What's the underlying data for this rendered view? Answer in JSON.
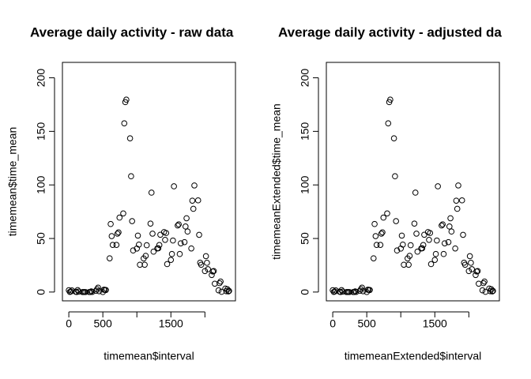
{
  "chart_data": [
    {
      "type": "scatter",
      "title": "Average daily activity - raw data",
      "x_label": "timemean$interval",
      "y_label": "timemean$time_mean",
      "x": [
        0,
        15,
        30,
        45,
        100,
        115,
        130,
        145,
        200,
        215,
        230,
        245,
        300,
        315,
        330,
        345,
        400,
        415,
        430,
        445,
        500,
        515,
        530,
        545,
        600,
        615,
        630,
        645,
        700,
        715,
        730,
        745,
        800,
        815,
        830,
        845,
        900,
        915,
        930,
        945,
        1000,
        1015,
        1030,
        1045,
        1100,
        1115,
        1130,
        1145,
        1200,
        1215,
        1230,
        1245,
        1300,
        1315,
        1330,
        1345,
        1400,
        1415,
        1430,
        1445,
        1500,
        1515,
        1530,
        1545,
        1600,
        1615,
        1630,
        1645,
        1700,
        1715,
        1730,
        1745,
        1800,
        1815,
        1830,
        1845,
        1900,
        1915,
        1930,
        1945,
        2000,
        2015,
        2030,
        2045,
        2100,
        2115,
        2130,
        2145,
        2200,
        2215,
        2230,
        2245,
        2300,
        2315,
        2330,
        2345,
        2355
      ],
      "values": [
        1.7,
        0.1,
        0.5,
        1.5,
        0.3,
        0,
        1.8,
        0.4,
        0,
        0,
        0,
        0,
        0,
        0,
        0.6,
        0.1,
        1.2,
        2.6,
        4.1,
        0.8,
        0,
        2.2,
        2.1,
        1.9,
        31.5,
        63.5,
        52.2,
        44,
        44,
        54.5,
        55.7,
        69.5,
        73.4,
        157.5,
        177.3,
        179.6,
        143.5,
        108.1,
        66.2,
        38.8,
        40.6,
        52.7,
        44.3,
        25.5,
        31.4,
        25.5,
        33.8,
        43.7,
        63.9,
        92.8,
        54.5,
        37.7,
        40.7,
        40.9,
        43.9,
        53.5,
        56,
        48.7,
        55.1,
        26.1,
        30,
        35.5,
        48.1,
        98.7,
        62.1,
        63.2,
        35.5,
        45.5,
        46.6,
        61.2,
        68.9,
        56.5,
        40.7,
        85.3,
        77.7,
        99.5,
        85.6,
        53.4,
        27.4,
        25.5,
        19.6,
        33.5,
        27.3,
        21.3,
        15.9,
        19.2,
        19.6,
        7.8,
        1.6,
        8.3,
        9.8,
        0.2,
        3.3,
        0.8,
        2.6,
        0.6,
        1.1
      ],
      "xlim": [
        -94,
        2449
      ],
      "ylim": [
        -8.2,
        214.4
      ],
      "xticks": [
        0,
        500,
        {
          "value": 1000,
          "label": null
        },
        1500,
        {
          "value": 2000,
          "label": null
        }
      ],
      "yticks": [
        0,
        50,
        100,
        150,
        200
      ]
    },
    {
      "type": "scatter",
      "title": "Average daily activity - adjusted da",
      "x_label": "timemeanExtended$interval",
      "y_label": "timemeanExtended$time_mean",
      "x": [
        0,
        15,
        30,
        45,
        100,
        115,
        130,
        145,
        200,
        215,
        230,
        245,
        300,
        315,
        330,
        345,
        400,
        415,
        430,
        445,
        500,
        515,
        530,
        545,
        600,
        615,
        630,
        645,
        700,
        715,
        730,
        745,
        800,
        815,
        830,
        845,
        900,
        915,
        930,
        945,
        1000,
        1015,
        1030,
        1045,
        1100,
        1115,
        1130,
        1145,
        1200,
        1215,
        1230,
        1245,
        1300,
        1315,
        1330,
        1345,
        1400,
        1415,
        1430,
        1445,
        1500,
        1515,
        1530,
        1545,
        1600,
        1615,
        1630,
        1645,
        1700,
        1715,
        1730,
        1745,
        1800,
        1815,
        1830,
        1845,
        1900,
        1915,
        1930,
        1945,
        2000,
        2015,
        2030,
        2045,
        2100,
        2115,
        2130,
        2145,
        2200,
        2215,
        2230,
        2245,
        2300,
        2315,
        2330,
        2345,
        2355
      ],
      "values": [
        1.7,
        0.1,
        0.5,
        1.5,
        0.3,
        0,
        1.8,
        0.4,
        0,
        0,
        0,
        0,
        0,
        0,
        0.6,
        0.1,
        1.2,
        2.6,
        4.1,
        0.8,
        0,
        2.2,
        2.1,
        1.9,
        31.5,
        63.5,
        52.2,
        44,
        44,
        54.5,
        55.7,
        69.5,
        73.4,
        157.5,
        177.3,
        179.6,
        143.5,
        108.1,
        66.2,
        38.8,
        40.6,
        52.7,
        44.3,
        25.5,
        31.4,
        25.5,
        33.8,
        43.7,
        63.9,
        92.8,
        54.5,
        37.7,
        40.7,
        40.9,
        43.9,
        53.5,
        56,
        48.7,
        55.1,
        26.1,
        30,
        35.5,
        48.1,
        98.7,
        62.1,
        63.2,
        35.5,
        45.5,
        46.6,
        61.2,
        68.9,
        56.5,
        40.7,
        85.3,
        77.7,
        99.5,
        85.6,
        53.4,
        27.4,
        25.5,
        19.6,
        33.5,
        27.3,
        21.3,
        15.9,
        19.2,
        19.6,
        7.8,
        1.6,
        8.3,
        9.8,
        0.2,
        3.3,
        0.8,
        2.6,
        0.6,
        1.1
      ],
      "xlim": [
        -94,
        2449
      ],
      "ylim": [
        -8.2,
        214.4
      ],
      "xticks": [
        0,
        500,
        {
          "value": 1000,
          "label": null
        },
        1500,
        {
          "value": 2000,
          "label": null
        }
      ],
      "yticks": [
        0,
        50,
        100,
        150,
        200
      ]
    }
  ]
}
